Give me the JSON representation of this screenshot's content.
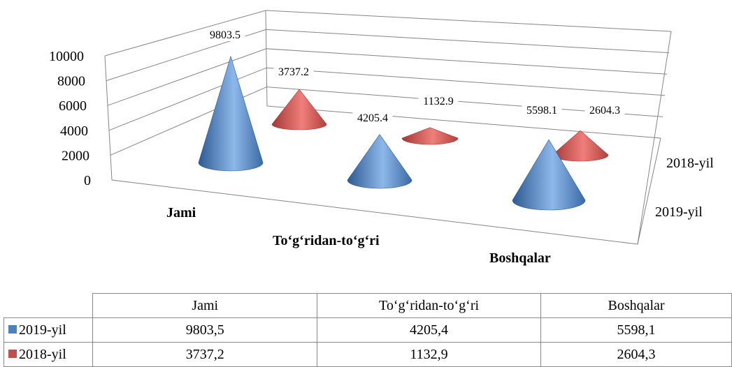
{
  "chart_data": {
    "type": "bar",
    "style": "3d-cone",
    "categories": [
      "Jami",
      "To‘g‘ridan-to‘g‘ri",
      "Boshqalar"
    ],
    "series": [
      {
        "name": "2019-yil",
        "values": [
          9803.5,
          4205.4,
          5598.1
        ],
        "labels": [
          "9803,5",
          "4205,4",
          "5598,1"
        ],
        "color": "#4f81bd"
      },
      {
        "name": "2018-yil",
        "values": [
          3737.2,
          1132.9,
          2604.3
        ],
        "labels": [
          "3737,2",
          "1132,9",
          "2604,3"
        ],
        "color": "#c0504d"
      }
    ],
    "point_labels": {
      "2019-yil": [
        "9803.5",
        "4205.4",
        "5598.1"
      ],
      "2018-yil": [
        "3737.2",
        "1132.9",
        "2604.3"
      ]
    },
    "y_ticks": [
      "0",
      "2000",
      "4000",
      "6000",
      "8000",
      "10000"
    ],
    "ylim": [
      0,
      10000
    ],
    "grid": true,
    "data_table": true
  }
}
